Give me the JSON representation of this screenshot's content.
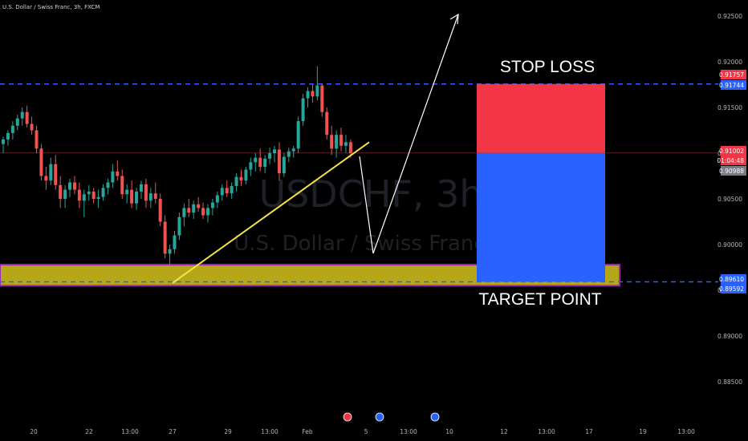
{
  "header": {
    "title": "U.S. Dollar / Swiss Franc, 3h, FXCM"
  },
  "watermark": {
    "symbol": "USDCHF, 3h",
    "name": "U.S. Dollar / Swiss Franc"
  },
  "annotations": {
    "stop_loss": "STOP LOSS",
    "target_point": "TARGET POINT"
  },
  "price_axis": {
    "ticks": [
      "0.92500",
      "0.92000",
      "0.91500",
      "0.91000",
      "0.90500",
      "0.90000",
      "0.89500",
      "0.89000",
      "0.88500"
    ],
    "labels": {
      "stop_loss_price": "0.91757",
      "entry_price": "0.91744",
      "last_price": "0.91002",
      "countdown": "01:04:48",
      "prev_price": "0.90988",
      "target_price_1": "0.89610",
      "target_price_2": "0.89592"
    }
  },
  "time_axis": {
    "labels": [
      "20",
      "22",
      "13:00",
      "27",
      "29",
      "13:00",
      "Feb",
      "5",
      "13:00",
      "10",
      "12",
      "13:00",
      "17",
      "19",
      "13:00"
    ]
  },
  "colors": {
    "up": "#26a69a",
    "down": "#ef5350",
    "stop_zone": "#f23645",
    "target_zone": "#2962ff",
    "trendline": "#f5e642",
    "support_zone": "#b5a718",
    "support_border": "#9c27b0",
    "dashed_level": "#2962ff",
    "arrow": "#ffffff"
  },
  "chart_data": {
    "type": "candlestick",
    "title": "U.S. Dollar / Swiss Franc, 3h, FXCM",
    "ylim": [
      0.882,
      0.927
    ],
    "candles": [
      [
        0.911,
        0.9118,
        0.91,
        0.9115
      ],
      [
        0.9115,
        0.9125,
        0.9108,
        0.9122
      ],
      [
        0.9122,
        0.9135,
        0.9115,
        0.913
      ],
      [
        0.913,
        0.9142,
        0.9125,
        0.9138
      ],
      [
        0.9138,
        0.915,
        0.913,
        0.9145
      ],
      [
        0.9145,
        0.9152,
        0.9128,
        0.9132
      ],
      [
        0.9132,
        0.914,
        0.912,
        0.9125
      ],
      [
        0.9125,
        0.913,
        0.91,
        0.9105
      ],
      [
        0.9105,
        0.911,
        0.907,
        0.9075
      ],
      [
        0.9075,
        0.9085,
        0.906,
        0.907
      ],
      [
        0.907,
        0.9095,
        0.9065,
        0.9088
      ],
      [
        0.9088,
        0.9098,
        0.906,
        0.9065
      ],
      [
        0.9065,
        0.9075,
        0.904,
        0.905
      ],
      [
        0.905,
        0.9065,
        0.904,
        0.906
      ],
      [
        0.906,
        0.9072,
        0.9052,
        0.9068
      ],
      [
        0.9068,
        0.9075,
        0.9055,
        0.906
      ],
      [
        0.906,
        0.9068,
        0.904,
        0.9048
      ],
      [
        0.9048,
        0.906,
        0.903,
        0.9055
      ],
      [
        0.9055,
        0.9065,
        0.9048,
        0.9058
      ],
      [
        0.9058,
        0.9062,
        0.9045,
        0.905
      ],
      [
        0.905,
        0.906,
        0.904,
        0.9052
      ],
      [
        0.9052,
        0.9066,
        0.9048,
        0.9062
      ],
      [
        0.9062,
        0.9072,
        0.9055,
        0.9068
      ],
      [
        0.9068,
        0.9088,
        0.9062,
        0.908
      ],
      [
        0.908,
        0.9092,
        0.907,
        0.9075
      ],
      [
        0.9075,
        0.9082,
        0.905,
        0.9055
      ],
      [
        0.9055,
        0.9066,
        0.9045,
        0.906
      ],
      [
        0.906,
        0.907,
        0.904,
        0.9045
      ],
      [
        0.9045,
        0.9062,
        0.9038,
        0.9058
      ],
      [
        0.9058,
        0.907,
        0.905,
        0.9066
      ],
      [
        0.9066,
        0.9072,
        0.904,
        0.9048
      ],
      [
        0.9048,
        0.9062,
        0.904,
        0.9056
      ],
      [
        0.9056,
        0.9068,
        0.9045,
        0.905
      ],
      [
        0.905,
        0.9056,
        0.902,
        0.9025
      ],
      [
        0.9025,
        0.9032,
        0.8985,
        0.899
      ],
      [
        0.899,
        0.9,
        0.8978,
        0.8995
      ],
      [
        0.8995,
        0.9015,
        0.899,
        0.901
      ],
      [
        0.901,
        0.9035,
        0.9005,
        0.903
      ],
      [
        0.903,
        0.9045,
        0.902,
        0.904
      ],
      [
        0.904,
        0.905,
        0.903,
        0.9035
      ],
      [
        0.9035,
        0.9048,
        0.9028,
        0.9044
      ],
      [
        0.9044,
        0.9052,
        0.9036,
        0.904
      ],
      [
        0.904,
        0.9046,
        0.9028,
        0.9032
      ],
      [
        0.9032,
        0.9044,
        0.9024,
        0.904
      ],
      [
        0.904,
        0.905,
        0.9032,
        0.9046
      ],
      [
        0.9046,
        0.9058,
        0.904,
        0.9054
      ],
      [
        0.9054,
        0.9066,
        0.9048,
        0.9062
      ],
      [
        0.9062,
        0.907,
        0.9052,
        0.9056
      ],
      [
        0.9056,
        0.9068,
        0.905,
        0.9064
      ],
      [
        0.9064,
        0.9078,
        0.9058,
        0.9074
      ],
      [
        0.9074,
        0.9082,
        0.9064,
        0.907
      ],
      [
        0.907,
        0.9085,
        0.9066,
        0.9082
      ],
      [
        0.9082,
        0.9095,
        0.9075,
        0.909
      ],
      [
        0.909,
        0.91,
        0.908,
        0.9095
      ],
      [
        0.9095,
        0.9105,
        0.908,
        0.9085
      ],
      [
        0.9085,
        0.9098,
        0.9078,
        0.9094
      ],
      [
        0.9094,
        0.9106,
        0.9088,
        0.91
      ],
      [
        0.91,
        0.9108,
        0.909,
        0.9104
      ],
      [
        0.9104,
        0.9112,
        0.907,
        0.9078
      ],
      [
        0.9078,
        0.91,
        0.9074,
        0.9096
      ],
      [
        0.9096,
        0.9106,
        0.909,
        0.9102
      ],
      [
        0.9102,
        0.9108,
        0.9095,
        0.9105
      ],
      [
        0.9105,
        0.914,
        0.91,
        0.9135
      ],
      [
        0.9135,
        0.9165,
        0.913,
        0.916
      ],
      [
        0.916,
        0.9172,
        0.915,
        0.9168
      ],
      [
        0.9168,
        0.9175,
        0.9155,
        0.9162
      ],
      [
        0.9162,
        0.9195,
        0.9158,
        0.9174
      ],
      [
        0.9174,
        0.9176,
        0.914,
        0.9145
      ],
      [
        0.9145,
        0.915,
        0.9115,
        0.912
      ],
      [
        0.912,
        0.913,
        0.9098,
        0.9105
      ],
      [
        0.9105,
        0.9125,
        0.9095,
        0.912
      ],
      [
        0.912,
        0.9128,
        0.9102,
        0.9108
      ],
      [
        0.9108,
        0.912,
        0.91,
        0.9112
      ],
      [
        0.9112,
        0.9115,
        0.9095,
        0.91
      ]
    ],
    "levels": {
      "stop_loss": 0.91757,
      "entry": 0.91002,
      "target": 0.89592
    },
    "support_zone": [
      0.8955,
      0.8978
    ]
  }
}
